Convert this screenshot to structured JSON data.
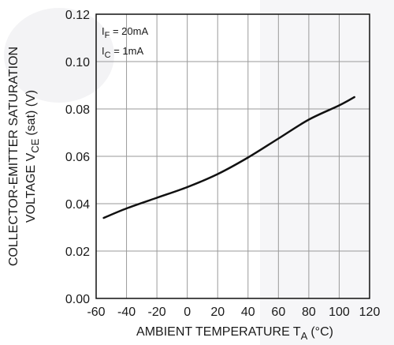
{
  "chart_data": {
    "type": "line",
    "x_values": [
      -55,
      -40,
      -20,
      0,
      20,
      40,
      60,
      80,
      100,
      110
    ],
    "series": [
      {
        "values": [
          0.034,
          0.038,
          0.0425,
          0.047,
          0.0525,
          0.0595,
          0.0675,
          0.0755,
          0.0815,
          0.085
        ]
      }
    ],
    "xlim": [
      -60,
      120
    ],
    "ylim": [
      0,
      0.12
    ],
    "x_ticks": [
      "-60",
      "-40",
      "-20",
      "0",
      "20",
      "40",
      "60",
      "80",
      "100",
      "120"
    ],
    "y_ticks": [
      "0.00",
      "0.02",
      "0.04",
      "0.06",
      "0.08",
      "0.10",
      "0.12"
    ],
    "xlabel": {
      "main": "AMBIENT TEMPERATURE T",
      "sub": "A",
      "unit": "(°C)"
    },
    "ylabel": {
      "line1": "COLLECTOR-EMITTER SATURATION",
      "line2_main": "VOLTAGE V",
      "line2_sub": "CE",
      "line2_unit": "(sat) (V)"
    },
    "annotations": [
      {
        "main": "I",
        "sub": "F",
        "rest": " = 20mA"
      },
      {
        "main": "I",
        "sub": "C",
        "rest": " = 1mA"
      }
    ],
    "grid": true,
    "legend": "none",
    "colors": {
      "line": "#111111",
      "grid": "#9a9a9a",
      "frame": "#111111"
    }
  }
}
